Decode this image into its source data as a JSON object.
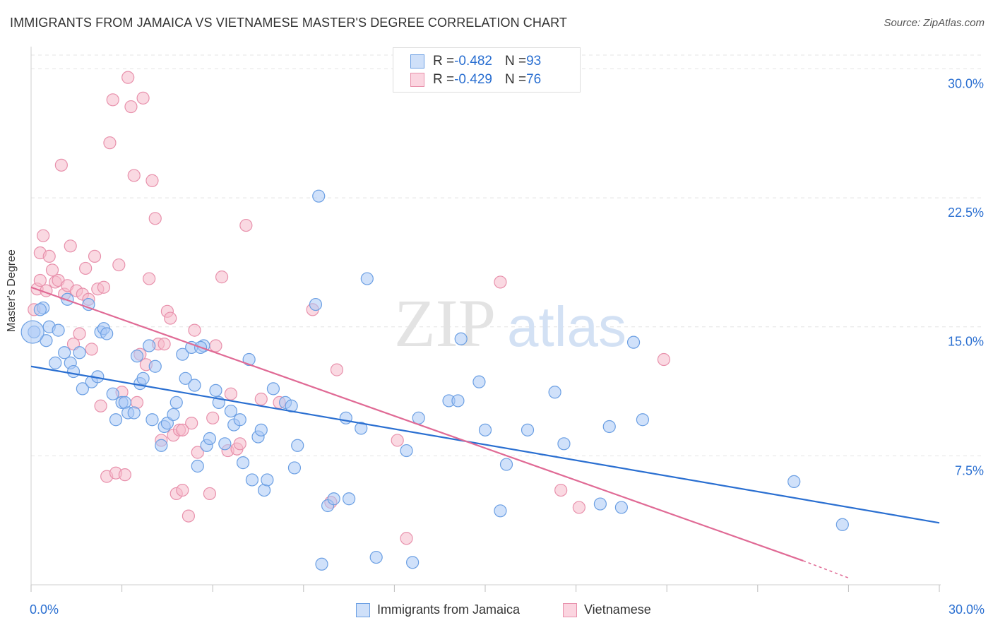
{
  "title": "IMMIGRANTS FROM JAMAICA VS VIETNAMESE MASTER'S DEGREE CORRELATION CHART",
  "source": "Source: ZipAtlas.com",
  "watermark": {
    "zip": "ZIP",
    "atlas": "atlas"
  },
  "legend_stats": [
    {
      "r_label": "R = ",
      "r_value": "-0.482",
      "n_label": "N = ",
      "n_value": "93",
      "color": "#a9c9f5"
    },
    {
      "r_label": "R = ",
      "r_value": "-0.429",
      "n_label": "N = ",
      "n_value": "76",
      "color": "#f6b9cb"
    }
  ],
  "colors": {
    "jamaica_fill": "#a9c9f5",
    "jamaica_stroke": "#6b9fe3",
    "jamaica_line": "#2a6fd1",
    "viet_fill": "#f6b9cb",
    "viet_stroke": "#e891ac",
    "viet_line": "#e06a95",
    "tick_label": "#2a6fd1"
  },
  "chart_data": {
    "type": "scatter",
    "title": "IMMIGRANTS FROM JAMAICA VS VIETNAMESE MASTER'S DEGREE CORRELATION CHART",
    "xlabel": "",
    "ylabel": "Master's Degree",
    "xlim": [
      0,
      30
    ],
    "ylim": [
      0,
      30.8
    ],
    "x_tick_labels": [
      "0.0%",
      "30.0%"
    ],
    "y_ticks": [
      7.5,
      15.0,
      22.5,
      30.0
    ],
    "y_tick_labels": [
      "7.5%",
      "15.0%",
      "22.5%",
      "30.0%"
    ],
    "grid": true,
    "legend_position": "bottom",
    "series": [
      {
        "name": "Immigrants from Jamaica",
        "trend": {
          "x": [
            0,
            30
          ],
          "y": [
            12.7,
            3.6
          ]
        },
        "points": [
          [
            0.1,
            14.7
          ],
          [
            0.4,
            16.1
          ],
          [
            0.5,
            14.2
          ],
          [
            0.6,
            15.0
          ],
          [
            0.8,
            12.9
          ],
          [
            0.9,
            14.8
          ],
          [
            1.1,
            13.5
          ],
          [
            1.2,
            16.6
          ],
          [
            1.3,
            12.9
          ],
          [
            1.4,
            12.4
          ],
          [
            1.6,
            13.5
          ],
          [
            1.7,
            11.4
          ],
          [
            1.9,
            16.3
          ],
          [
            2.0,
            11.8
          ],
          [
            2.2,
            12.1
          ],
          [
            2.3,
            14.7
          ],
          [
            2.4,
            14.9
          ],
          [
            2.5,
            14.6
          ],
          [
            2.7,
            11.1
          ],
          [
            2.8,
            9.6
          ],
          [
            3.0,
            10.6
          ],
          [
            3.1,
            10.6
          ],
          [
            3.2,
            10.0
          ],
          [
            3.4,
            10.0
          ],
          [
            3.5,
            13.3
          ],
          [
            3.6,
            11.7
          ],
          [
            3.7,
            12.0
          ],
          [
            3.9,
            13.9
          ],
          [
            4.0,
            9.6
          ],
          [
            4.1,
            12.7
          ],
          [
            4.3,
            8.1
          ],
          [
            4.4,
            9.2
          ],
          [
            4.5,
            9.4
          ],
          [
            4.7,
            9.9
          ],
          [
            4.8,
            10.6
          ],
          [
            5.0,
            13.4
          ],
          [
            5.1,
            12.0
          ],
          [
            5.3,
            13.8
          ],
          [
            5.4,
            11.6
          ],
          [
            5.5,
            6.9
          ],
          [
            5.7,
            13.9
          ],
          [
            5.8,
            8.1
          ],
          [
            5.9,
            8.5
          ],
          [
            6.1,
            11.3
          ],
          [
            6.2,
            10.6
          ],
          [
            6.4,
            8.2
          ],
          [
            6.6,
            10.1
          ],
          [
            6.7,
            9.3
          ],
          [
            6.9,
            9.6
          ],
          [
            7.0,
            7.1
          ],
          [
            7.2,
            13.1
          ],
          [
            7.3,
            6.1
          ],
          [
            7.5,
            8.6
          ],
          [
            7.6,
            9.0
          ],
          [
            7.7,
            5.5
          ],
          [
            7.8,
            6.1
          ],
          [
            8.0,
            11.4
          ],
          [
            8.4,
            10.6
          ],
          [
            8.6,
            10.4
          ],
          [
            8.8,
            8.1
          ],
          [
            8.7,
            6.8
          ],
          [
            9.5,
            22.6
          ],
          [
            9.4,
            16.3
          ],
          [
            9.6,
            1.2
          ],
          [
            9.8,
            4.6
          ],
          [
            10.0,
            5.0
          ],
          [
            10.5,
            5.0
          ],
          [
            10.4,
            9.7
          ],
          [
            10.9,
            9.1
          ],
          [
            11.1,
            17.8
          ],
          [
            11.4,
            1.6
          ],
          [
            12.4,
            7.8
          ],
          [
            12.6,
            1.3
          ],
          [
            12.8,
            9.7
          ],
          [
            13.8,
            10.7
          ],
          [
            14.1,
            10.7
          ],
          [
            14.2,
            14.3
          ],
          [
            14.8,
            11.8
          ],
          [
            15.0,
            9.0
          ],
          [
            15.5,
            4.3
          ],
          [
            15.7,
            7.0
          ],
          [
            16.4,
            9.0
          ],
          [
            17.3,
            11.2
          ],
          [
            17.6,
            8.2
          ],
          [
            18.8,
            4.7
          ],
          [
            19.1,
            9.2
          ],
          [
            19.5,
            4.5
          ],
          [
            19.9,
            14.1
          ],
          [
            20.2,
            9.6
          ],
          [
            25.2,
            6.0
          ],
          [
            26.8,
            3.5
          ],
          [
            5.6,
            13.8
          ],
          [
            0.3,
            16.0
          ]
        ]
      },
      {
        "name": "Vietnamese",
        "trend": {
          "x": [
            0,
            25.5
          ],
          "y": [
            17.3,
            1.4
          ]
        },
        "trend_dashed": {
          "x": [
            25.5,
            27.0
          ],
          "y": [
            1.4,
            0.4
          ]
        },
        "points": [
          [
            0.1,
            16.0
          ],
          [
            0.2,
            17.2
          ],
          [
            0.3,
            17.7
          ],
          [
            0.3,
            19.3
          ],
          [
            0.4,
            20.3
          ],
          [
            0.5,
            17.1
          ],
          [
            0.6,
            19.1
          ],
          [
            0.7,
            18.3
          ],
          [
            0.8,
            17.6
          ],
          [
            0.9,
            17.7
          ],
          [
            1.0,
            24.4
          ],
          [
            1.1,
            16.9
          ],
          [
            1.2,
            17.4
          ],
          [
            1.3,
            19.7
          ],
          [
            1.4,
            14.0
          ],
          [
            1.5,
            17.1
          ],
          [
            1.6,
            14.6
          ],
          [
            1.7,
            16.9
          ],
          [
            1.8,
            18.4
          ],
          [
            1.9,
            16.6
          ],
          [
            2.0,
            13.7
          ],
          [
            2.1,
            19.1
          ],
          [
            2.2,
            17.2
          ],
          [
            2.3,
            10.4
          ],
          [
            2.4,
            17.3
          ],
          [
            2.5,
            6.3
          ],
          [
            2.6,
            25.7
          ],
          [
            2.7,
            28.2
          ],
          [
            2.8,
            6.5
          ],
          [
            2.9,
            18.6
          ],
          [
            3.0,
            11.2
          ],
          [
            3.1,
            6.4
          ],
          [
            3.2,
            29.5
          ],
          [
            3.3,
            27.8
          ],
          [
            3.4,
            23.8
          ],
          [
            3.5,
            10.6
          ],
          [
            3.6,
            13.4
          ],
          [
            3.7,
            28.3
          ],
          [
            3.8,
            12.8
          ],
          [
            3.9,
            17.8
          ],
          [
            4.0,
            23.5
          ],
          [
            4.1,
            21.3
          ],
          [
            4.2,
            14.0
          ],
          [
            4.3,
            8.4
          ],
          [
            4.4,
            14.0
          ],
          [
            4.5,
            15.9
          ],
          [
            4.6,
            15.5
          ],
          [
            4.7,
            8.7
          ],
          [
            4.8,
            5.3
          ],
          [
            4.9,
            9.0
          ],
          [
            5.0,
            5.5
          ],
          [
            5.2,
            4.0
          ],
          [
            5.3,
            9.4
          ],
          [
            5.4,
            14.8
          ],
          [
            5.5,
            7.7
          ],
          [
            5.9,
            5.3
          ],
          [
            6.0,
            9.7
          ],
          [
            6.1,
            13.9
          ],
          [
            6.3,
            17.9
          ],
          [
            6.5,
            7.8
          ],
          [
            6.6,
            11.1
          ],
          [
            6.8,
            7.9
          ],
          [
            6.9,
            8.2
          ],
          [
            7.1,
            20.9
          ],
          [
            7.6,
            10.8
          ],
          [
            8.2,
            10.6
          ],
          [
            9.3,
            16.0
          ],
          [
            9.9,
            4.8
          ],
          [
            10.1,
            12.5
          ],
          [
            12.1,
            8.4
          ],
          [
            12.4,
            2.7
          ],
          [
            15.5,
            17.6
          ],
          [
            17.5,
            5.5
          ],
          [
            18.1,
            4.5
          ],
          [
            20.9,
            13.1
          ],
          [
            5.0,
            9.0
          ]
        ]
      }
    ]
  },
  "x_axis": {
    "min_label": "0.0%",
    "max_label": "30.0%"
  }
}
